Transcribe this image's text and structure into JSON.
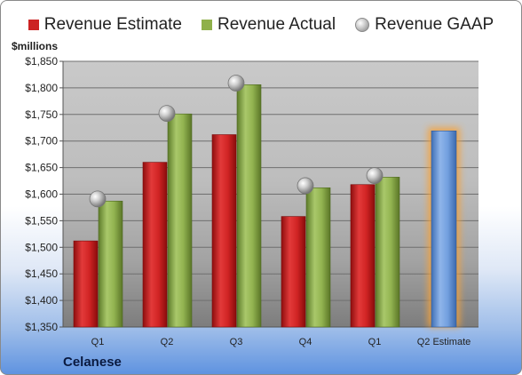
{
  "legend": {
    "estimate": "Revenue Estimate",
    "actual": "Revenue Actual",
    "gaap": "Revenue GAAP"
  },
  "unit_label": "$millions",
  "company": "Celanese",
  "colors": {
    "estimate": "#cc2222",
    "actual": "#8fb04a",
    "gaap": "#b8b8b8",
    "q2_estimate": "#6f9ad8",
    "highlight_glow": "#f5a23a"
  },
  "chart_data": {
    "type": "bar",
    "categories": [
      "Q1",
      "Q2",
      "Q3",
      "Q4",
      "Q1",
      "Q2 Estimate"
    ],
    "series": [
      {
        "name": "Revenue Estimate",
        "values": [
          1512,
          1660,
          1712,
          1558,
          1618,
          1719
        ]
      },
      {
        "name": "Revenue Actual",
        "values": [
          1587,
          1751,
          1806,
          1612,
          1632,
          null
        ]
      },
      {
        "name": "Revenue GAAP",
        "values": [
          1591,
          1752,
          1809,
          1616,
          1635,
          null
        ]
      }
    ],
    "ylim": [
      1350,
      1850
    ],
    "yticks": [
      1350,
      1400,
      1450,
      1500,
      1550,
      1600,
      1650,
      1700,
      1750,
      1800,
      1850
    ],
    "ytick_labels": [
      "$1,350",
      "$1,400",
      "$1,450",
      "$1,500",
      "$1,550",
      "$1,600",
      "$1,650",
      "$1,700",
      "$1,750",
      "$1,800",
      "$1,850"
    ],
    "legend_position": "top",
    "grid": true
  }
}
